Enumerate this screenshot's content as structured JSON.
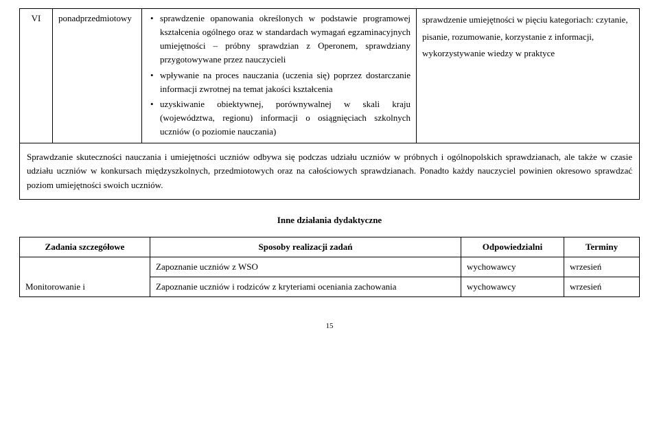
{
  "top_table": {
    "col1": "VI",
    "col2": "ponadprzedmiotowy",
    "bullets": [
      "sprawdzenie opanowania określonych w podstawie programowej kształcenia ogólnego oraz w standardach wymagań egzaminacyjnych umiejętności – próbny sprawdzian  z Operonem, sprawdziany przygotowywane przez nauczycieli",
      "wpływanie na proces nauczania (uczenia się) poprzez dostarczanie informacji zwrotnej na temat jakości kształcenia",
      "uzyskiwanie obiektywnej, porównywalnej w skali kraju (województwa, regionu) informacji o osiągnięciach szkolnych uczniów (o poziomie nauczania)"
    ],
    "right": "sprawdzenie umiejętności w pięciu kategoriach: czytanie, pisanie, rozumowanie, korzystanie z informacji, wykorzystywanie wiedzy w praktyce",
    "boxed_paragraph": "Sprawdzanie skuteczności nauczania i umiejętności uczniów odbywa się podczas udziału uczniów w próbnych i ogólnopolskich sprawdzianach, ale także w czasie udziału uczniów w konkursach międzyszkolnych, przedmiotowych oraz na całościowych sprawdzianach. Ponadto każdy nauczyciel powinien okresowo sprawdzać poziom umiejętności swoich uczniów."
  },
  "section_title": "Inne działania dydaktyczne",
  "headers": {
    "a": "Zadania szczegółowe",
    "b": "Sposoby realizacji zadań",
    "c": "Odpowiedzialni",
    "d": "Terminy"
  },
  "rows": [
    {
      "a": "",
      "b": "Zapoznanie uczniów z WSO",
      "c": "wychowawcy",
      "d": "wrzesień"
    },
    {
      "a": "Monitorowanie i",
      "b": "Zapoznanie uczniów i rodziców z kryteriami oceniania zachowania",
      "c": "wychowawcy",
      "d": "wrzesień"
    }
  ],
  "page_number": "15"
}
